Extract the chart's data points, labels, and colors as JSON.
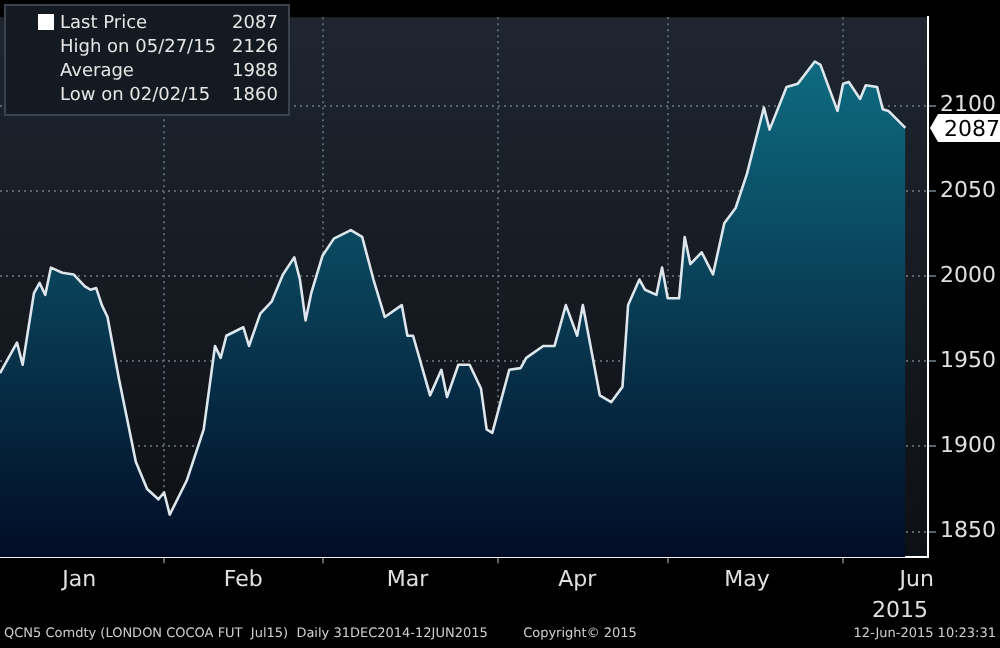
{
  "chart_data": {
    "type": "area",
    "xlabel": "2015",
    "legend": "top left",
    "grid": true,
    "xlim": [
      "2015-01-03",
      "2015-06-16"
    ],
    "xticks": [
      {
        "value": "2015-01-17",
        "label": "Jan"
      },
      {
        "value": "2015-02-01",
        "label": null
      },
      {
        "value": "2015-02-15",
        "label": "Feb"
      },
      {
        "value": "2015-03-01",
        "label": null
      },
      {
        "value": "2015-03-16",
        "label": "Mar"
      },
      {
        "value": "2015-04-01",
        "label": null
      },
      {
        "value": "2015-04-15",
        "label": "Apr"
      },
      {
        "value": "2015-05-01",
        "label": null
      },
      {
        "value": "2015-05-15",
        "label": "May"
      },
      {
        "value": "2015-06-01",
        "label": null
      },
      {
        "value": "2015-06-14",
        "label": "Jun"
      }
    ],
    "ylim": [
      1835,
      2152
    ],
    "yticks": [
      1850,
      1900,
      1950,
      2000,
      2050,
      2100
    ],
    "x": [
      "2015-01-03",
      "2015-01-06",
      "2015-01-07",
      "2015-01-09",
      "2015-01-10",
      "2015-01-11",
      "2015-01-12",
      "2015-01-14",
      "2015-01-16",
      "2015-01-18",
      "2015-01-19",
      "2015-01-20",
      "2015-01-21",
      "2015-01-22",
      "2015-01-24",
      "2015-01-27",
      "2015-01-29",
      "2015-01-31",
      "2015-02-01",
      "2015-02-02",
      "2015-02-05",
      "2015-02-08",
      "2015-02-10",
      "2015-02-11",
      "2015-02-12",
      "2015-02-15",
      "2015-02-16",
      "2015-02-18",
      "2015-02-20",
      "2015-02-22",
      "2015-02-24",
      "2015-02-25",
      "2015-02-26",
      "2015-02-27",
      "2015-03-01",
      "2015-03-03",
      "2015-03-06",
      "2015-03-08",
      "2015-03-10",
      "2015-03-12",
      "2015-03-15",
      "2015-03-16",
      "2015-03-17",
      "2015-03-20",
      "2015-03-22",
      "2015-03-23",
      "2015-03-25",
      "2015-03-27",
      "2015-03-29",
      "2015-03-30",
      "2015-03-31",
      "2015-04-03",
      "2015-04-05",
      "2015-04-06",
      "2015-04-09",
      "2015-04-11",
      "2015-04-13",
      "2015-04-15",
      "2015-04-16",
      "2015-04-19",
      "2015-04-21",
      "2015-04-23",
      "2015-04-24",
      "2015-04-26",
      "2015-04-27",
      "2015-04-29",
      "2015-04-30",
      "2015-05-01",
      "2015-05-03",
      "2015-05-04",
      "2015-05-05",
      "2015-05-07",
      "2015-05-09",
      "2015-05-11",
      "2015-05-13",
      "2015-05-15",
      "2015-05-16",
      "2015-05-18",
      "2015-05-19",
      "2015-05-22",
      "2015-05-24",
      "2015-05-27",
      "2015-05-28",
      "2015-05-31",
      "2015-06-01",
      "2015-06-02",
      "2015-06-04",
      "2015-06-05",
      "2015-06-07",
      "2015-06-08",
      "2015-06-09",
      "2015-06-12"
    ],
    "series": [
      {
        "name": "Last Price",
        "color": "#0f7489",
        "values": [
          1943,
          1961,
          1948,
          1990,
          1996,
          1989,
          2005,
          2002,
          2001,
          1994,
          1992,
          1993,
          1983,
          1976,
          1940,
          1891,
          1875,
          1869,
          1873,
          1860,
          1880,
          1910,
          1959,
          1952,
          1965,
          1970,
          1959,
          1978,
          1985,
          2001,
          2011,
          1998,
          1974,
          1990,
          2012,
          2022,
          2027,
          2023,
          1998,
          1976,
          1983,
          1965,
          1965,
          1930,
          1945,
          1929,
          1948,
          1948,
          1934,
          1910,
          1908,
          1945,
          1946,
          1952,
          1959,
          1959,
          1983,
          1965,
          1983,
          1930,
          1926,
          1935,
          1983,
          1998,
          1992,
          1989,
          2005,
          1987,
          1987,
          2023,
          2007,
          2014,
          2001,
          2031,
          2040,
          2060,
          2073,
          2099,
          2086,
          2111,
          2113,
          2126,
          2124,
          2097,
          2113,
          2114,
          2104,
          2112,
          2111,
          2098,
          2097,
          2087
        ],
        "value_labels": [
          null,
          null,
          null,
          null,
          null,
          null,
          null,
          null,
          null,
          null,
          null,
          null,
          null,
          null,
          null,
          null,
          null,
          null,
          null,
          null,
          null,
          null,
          null,
          null,
          null,
          null,
          null,
          null,
          null,
          null,
          null,
          null,
          null,
          null,
          null,
          null,
          null,
          null,
          null,
          null,
          null,
          null,
          null,
          null,
          null,
          null,
          null,
          null,
          null,
          null,
          null,
          null,
          null,
          null,
          null,
          null,
          null,
          null,
          null,
          null,
          null,
          null,
          null,
          null,
          null,
          null,
          null,
          null,
          null,
          null,
          null,
          null,
          null,
          null,
          null,
          null,
          null,
          null,
          null,
          null,
          null,
          null,
          null,
          null,
          null,
          null,
          null,
          null,
          null,
          null,
          null,
          "2087"
        ]
      }
    ],
    "annotations": [
      "High on 05/27/15 2126",
      "Average 1988",
      "Low on 02/02/15 1860",
      "QCN5 Comdty (LONDON COCOA FUT  Jul15)  Daily 31DEC2014-12JUN2015",
      "Copyright© 2015",
      "12-Jun-2015 10:23:31"
    ]
  }
}
